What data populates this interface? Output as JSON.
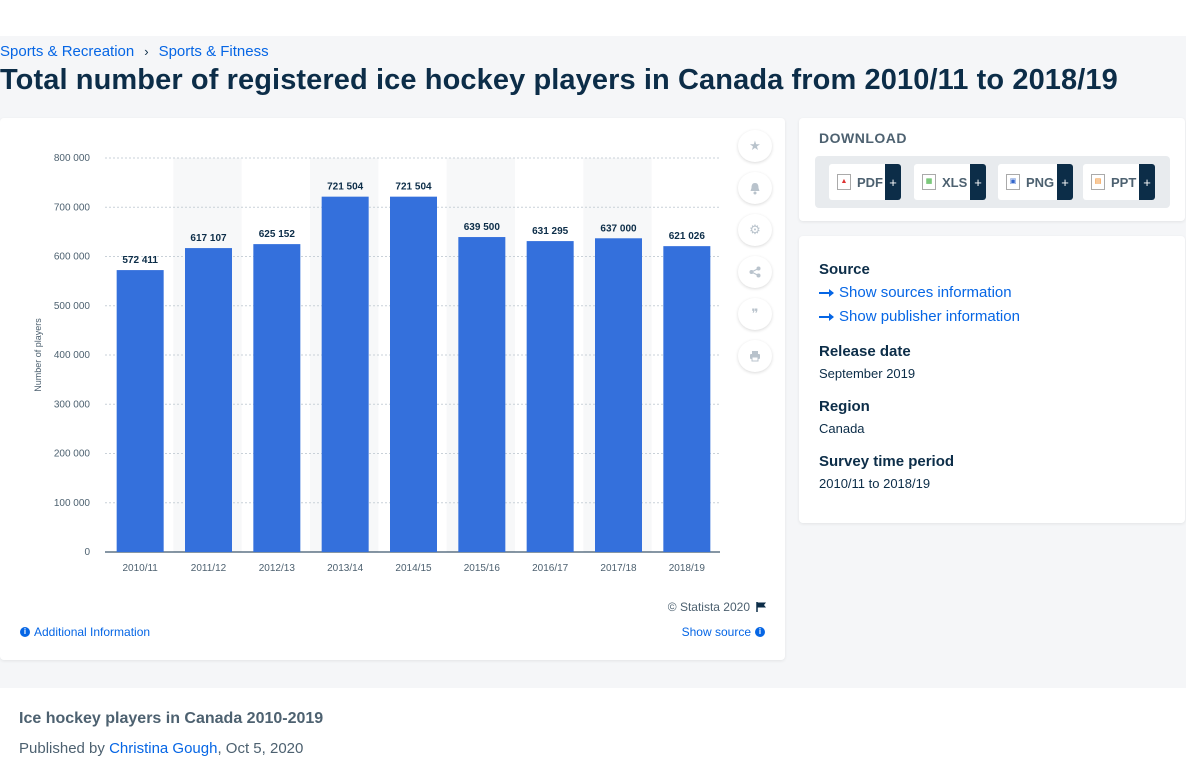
{
  "breadcrumb": [
    "Sports & Recreation",
    "Sports & Fitness"
  ],
  "breadcrumb_separator": "›",
  "page_title": "Total number of registered ice hockey players in Canada from 2010/11 to 2018/19",
  "chart_data": {
    "type": "bar",
    "categories": [
      "2010/11",
      "2011/12",
      "2012/13",
      "2013/14",
      "2014/15",
      "2015/16",
      "2016/17",
      "2017/18",
      "2018/19"
    ],
    "values": [
      572411,
      617107,
      625152,
      721504,
      721504,
      639500,
      631295,
      637000,
      621026
    ],
    "value_labels": [
      "572 411",
      "617 107",
      "625 152",
      "721 504",
      "721 504",
      "639 500",
      "631 295",
      "637 000",
      "621 026"
    ],
    "ylabel": "Number of players",
    "ylim": [
      0,
      800000
    ],
    "yticks": [
      0,
      100000,
      200000,
      300000,
      400000,
      500000,
      600000,
      700000,
      800000
    ],
    "ytick_labels": [
      "0",
      "100 000",
      "200 000",
      "300 000",
      "400 000",
      "500 000",
      "600 000",
      "700 000",
      "800 000"
    ],
    "bar_color": "#3470dc",
    "grid": true
  },
  "chart_footer": {
    "copyright": "© Statista 2020",
    "additional_info": "Additional Information",
    "show_source": "Show source"
  },
  "tools": [
    "star-icon",
    "bell-icon",
    "gear-icon",
    "share-icon",
    "quote-icon",
    "print-icon"
  ],
  "download": {
    "title": "DOWNLOAD",
    "formats": [
      "PDF",
      "XLS",
      "PNG",
      "PPT"
    ],
    "plus": "+"
  },
  "meta": {
    "source_heading": "Source",
    "show_sources": "Show sources information",
    "show_publisher": "Show publisher information",
    "release_heading": "Release date",
    "release_value": "September 2019",
    "region_heading": "Region",
    "region_value": "Canada",
    "survey_heading": "Survey time period",
    "survey_value": "2010/11 to 2018/19"
  },
  "bottom": {
    "title": "Ice hockey players in Canada 2010-2019",
    "published_by": "Published by",
    "author": "Christina Gough",
    "date": ", Oct 5, 2020"
  }
}
